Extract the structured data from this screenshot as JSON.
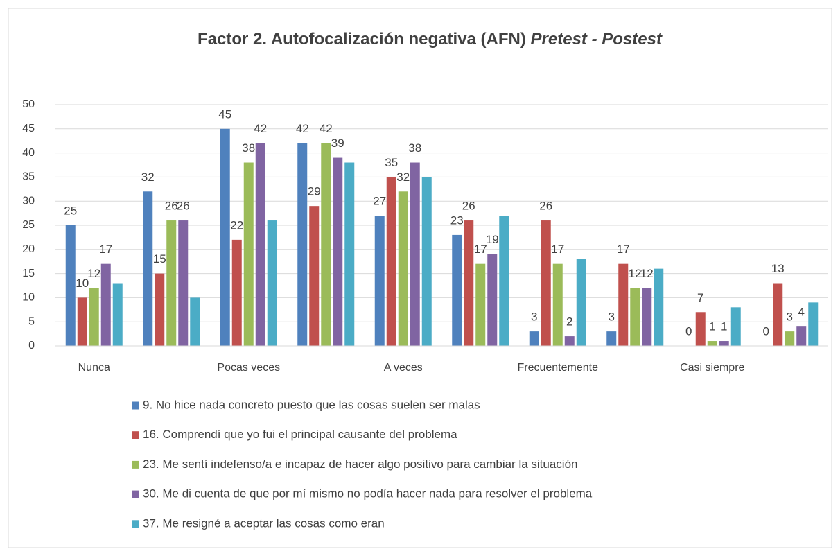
{
  "chart_data": {
    "type": "bar",
    "title": "Factor 2. Autofocalización negativa (AFN)",
    "subtitle": "Pretest - Postest",
    "categories": [
      "Nunca",
      null,
      "Pocas veces",
      null,
      "A veces",
      null,
      "Frecuentemente",
      null,
      "Casi siempre",
      null
    ],
    "series": [
      {
        "name": "9. No hice nada concreto puesto que las cosas suelen ser malas",
        "color": "#4f81bd",
        "values": [
          25,
          32,
          45,
          42,
          27,
          23,
          3,
          3,
          0,
          0
        ],
        "show_values": true
      },
      {
        "name": "16. Comprendí que yo fui el principal causante del problema",
        "color": "#c0504d",
        "values": [
          10,
          15,
          22,
          29,
          35,
          26,
          26,
          17,
          7,
          13
        ],
        "show_values": true
      },
      {
        "name": "23. Me sentí indefenso/a e incapaz de hacer algo positivo para cambiar la situación",
        "color": "#9bbb59",
        "values": [
          12,
          26,
          38,
          42,
          32,
          17,
          17,
          12,
          1,
          3
        ],
        "show_values": true
      },
      {
        "name": "30. Me di cuenta de que por mí mismo no podía hacer nada para resolver el problema",
        "color": "#8064a2",
        "values": [
          17,
          26,
          42,
          39,
          38,
          19,
          2,
          12,
          1,
          4
        ],
        "show_values": true
      },
      {
        "name": "37. Me resigné a aceptar las cosas como eran",
        "color": "#4bacc6",
        "values": [
          13,
          10,
          26,
          38,
          35,
          27,
          18,
          16,
          8,
          9
        ],
        "show_values": false
      }
    ],
    "ylim": [
      0,
      50
    ],
    "yticks": [
      0,
      5,
      10,
      15,
      20,
      25,
      30,
      35,
      40,
      45,
      50
    ],
    "grid": true,
    "legend": "bottom"
  }
}
